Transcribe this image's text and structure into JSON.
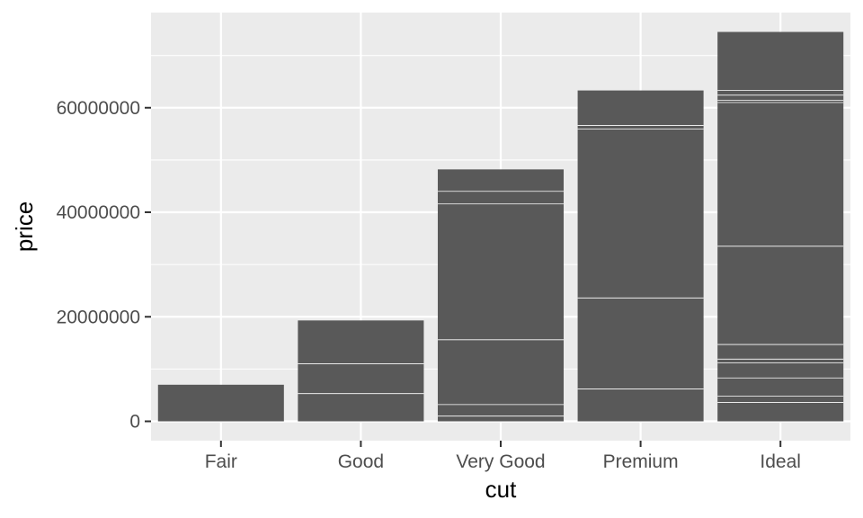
{
  "chart_data": {
    "type": "bar",
    "stacked": true,
    "title": "",
    "xlabel": "cut",
    "ylabel": "price",
    "categories": [
      "Fair",
      "Good",
      "Very Good",
      "Premium",
      "Ideal"
    ],
    "values": [
      7000000,
      19300000,
      48200000,
      63300000,
      74500000
    ],
    "segment_boundaries": [
      [],
      [
        5300000,
        11000000
      ],
      [
        1000000,
        3200000,
        15600000,
        41600000,
        44000000
      ],
      [
        6200000,
        23600000,
        55900000,
        56600000
      ],
      [
        3600000,
        4800000,
        8300000,
        11200000,
        11900000,
        14700000,
        33500000,
        61000000,
        61400000,
        62400000,
        63300000
      ]
    ],
    "yticks": [
      0,
      20000000,
      40000000,
      60000000
    ],
    "ytick_labels": [
      "0",
      "20000000",
      "40000000",
      "60000000"
    ],
    "ylim": [
      -3700000,
      78200000
    ],
    "grid": true,
    "colors": {
      "bar": "#595959",
      "panel": "#ebebeb",
      "grid": "#ffffff",
      "segment_line": "#ffffff",
      "tick_text": "#4d4d4d",
      "axis_title": "#000000"
    }
  }
}
